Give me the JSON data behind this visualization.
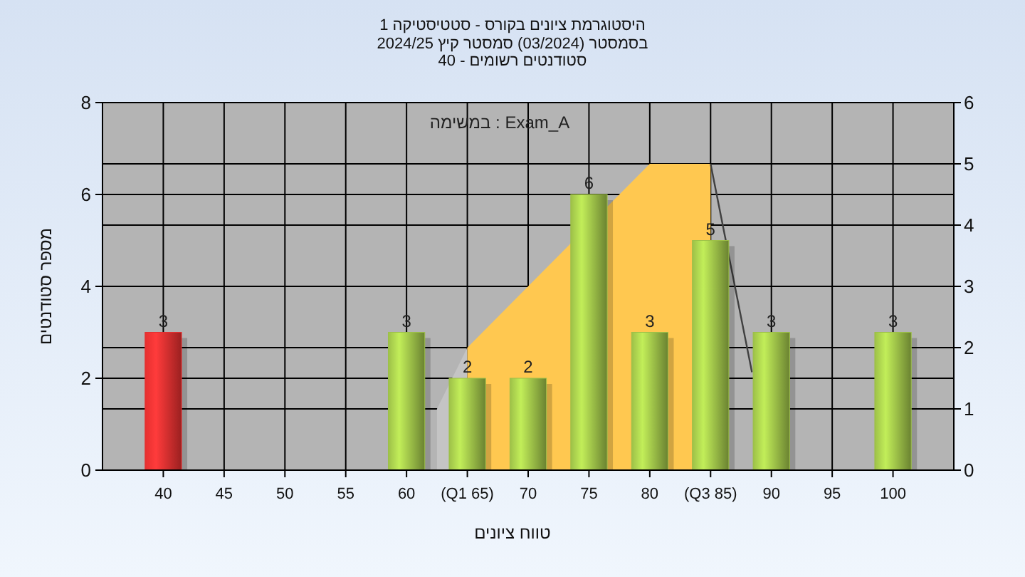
{
  "chart_data": {
    "type": "bar",
    "title": "היסטוגרמת ציונים בקורס - סטטיסטיקה 1",
    "subtitle": "בסמסטר  (03/2024)  סמסטר קיץ 2024/25\nסטודנטים רשומים - 40",
    "xlabel": "טווח ציונים",
    "ylabel": "מספר סטודנטים",
    "annotations": [
      "במשימה : Exam_A"
    ],
    "xlim": [
      35,
      105
    ],
    "xticks": [
      40,
      45,
      50,
      55,
      60,
      {
        "value": 65,
        "label": "(Q1 65)"
      },
      70,
      75,
      80,
      {
        "value": 85,
        "label": "(Q3 85)"
      },
      90,
      95,
      100
    ],
    "ylim": [
      0,
      8
    ],
    "yticks": [
      0,
      2,
      4,
      6,
      8
    ],
    "y2lim": [
      0,
      6
    ],
    "y2ticks": [
      0,
      1,
      2,
      3,
      4,
      5,
      6
    ],
    "grid": true,
    "series": [
      {
        "type": "area",
        "axis": "y2",
        "color": "#c4c4c4",
        "x": [
          62.5,
          65
        ],
        "values": [
          1,
          2
        ]
      },
      {
        "type": "area",
        "axis": "y2",
        "color": "#ffc850",
        "x": [
          65,
          80,
          85
        ],
        "values": [
          2,
          5,
          5
        ]
      },
      {
        "type": "line",
        "axis": "y2",
        "color": "#404040",
        "x": [
          85,
          88.4
        ],
        "values": [
          5,
          1.6
        ]
      },
      {
        "x": [
          40,
          60,
          65,
          70,
          75,
          80,
          85,
          90,
          100
        ],
        "values": [
          3,
          3,
          2,
          2,
          6,
          3,
          5,
          3,
          3
        ],
        "value_labels": [
          "3",
          "3",
          "2",
          "2",
          "6",
          "3",
          "5",
          "3",
          "3"
        ],
        "colors": [
          "#e53030",
          "#9dc048",
          "#9dc048",
          "#9dc048",
          "#9dc048",
          "#9dc048",
          "#9dc048",
          "#9dc048",
          "#9dc048"
        ]
      }
    ]
  }
}
